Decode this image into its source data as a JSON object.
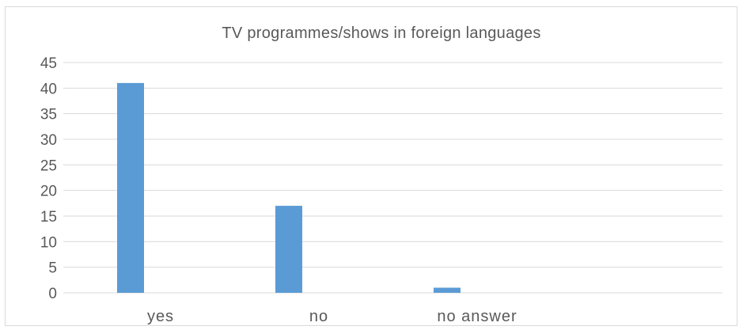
{
  "chart_data": {
    "type": "bar",
    "title": "TV programmes/shows  in foreign languages",
    "categories": [
      "yes",
      "no",
      "no answer"
    ],
    "values": [
      41,
      17,
      1
    ],
    "ylim": [
      0,
      45
    ],
    "yticks": [
      "0",
      "5",
      "10",
      "15",
      "20",
      "25",
      "30",
      "35",
      "40",
      "45"
    ],
    "grid": true,
    "bar_color": "#5b9bd5",
    "grid_color": "#d9d9d9"
  }
}
